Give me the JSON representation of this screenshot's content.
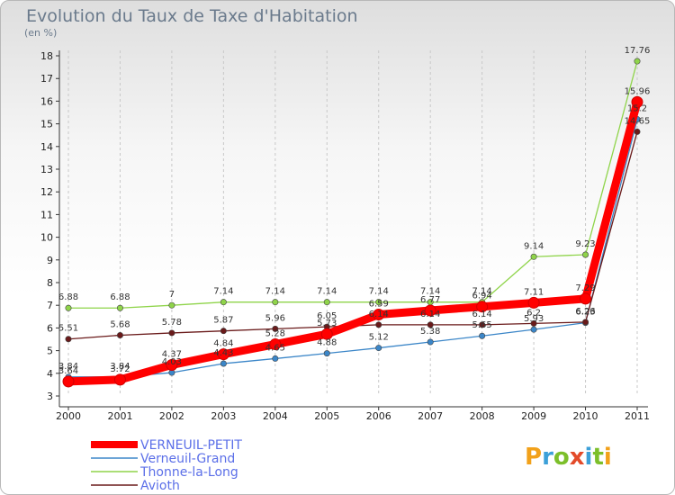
{
  "chart_data": {
    "type": "line",
    "title": "Evolution du Taux de Taxe d'Habitation",
    "ylabel": "(en %)",
    "xlabel": "",
    "categories": [
      "2000",
      "2001",
      "2002",
      "2003",
      "2004",
      "2005",
      "2006",
      "2007",
      "2008",
      "2009",
      "2010",
      "2011"
    ],
    "ylim": [
      3,
      18
    ],
    "yticks": [
      3,
      4,
      5,
      6,
      7,
      8,
      9,
      10,
      11,
      12,
      13,
      14,
      15,
      16,
      17,
      18
    ],
    "grid": "vertical dashed",
    "legend_position": "bottom-left",
    "logo_text": "Proxiti",
    "series": [
      {
        "name": "VERNEUIL-PETIT",
        "color": "#ff0000",
        "values": [
          3.64,
          3.72,
          4.37,
          4.84,
          5.28,
          5.73,
          6.59,
          6.77,
          6.94,
          7.11,
          7.29,
          15.96
        ],
        "labels": [
          "3.64",
          "3.72",
          "4.37",
          "4.84",
          "5.28",
          "5.73",
          "6.59",
          "6.77",
          "6.94",
          "7.11",
          "7.29",
          "15.96"
        ]
      },
      {
        "name": "Verneuil-Grand",
        "color": "#3b86c8",
        "values": [
          3.84,
          3.84,
          4.03,
          4.43,
          4.65,
          4.88,
          5.12,
          5.38,
          5.65,
          5.93,
          6.23,
          15.2
        ],
        "labels": [
          "3.84",
          "3.84",
          "4.03",
          "4.43",
          "4.65",
          "4.88",
          "5.12",
          "5.38",
          "5.65",
          "5.93",
          "6.23",
          "15.2"
        ]
      },
      {
        "name": "Thonne-la-Long",
        "color": "#8fd44a",
        "values": [
          6.88,
          6.88,
          7,
          7.14,
          7.14,
          7.14,
          7.14,
          7.14,
          7.14,
          9.14,
          9.23,
          17.76
        ],
        "labels": [
          "6.88",
          "6.88",
          "7",
          "7.14",
          "7.14",
          "7.14",
          "7.14",
          "7.14",
          "7.14",
          "9.14",
          "9.23",
          "17.76"
        ]
      },
      {
        "name": "Avioth",
        "color": "#6a1a1a",
        "values": [
          5.51,
          5.68,
          5.78,
          5.87,
          5.96,
          6.05,
          6.14,
          6.14,
          6.14,
          6.2,
          6.26,
          14.65
        ],
        "labels": [
          "5.51",
          "5.68",
          "5.78",
          "5.87",
          "5.96",
          "6.05",
          "6.14",
          "6.14",
          "6.14",
          "6.2",
          "6.26",
          "14.65"
        ]
      }
    ]
  }
}
